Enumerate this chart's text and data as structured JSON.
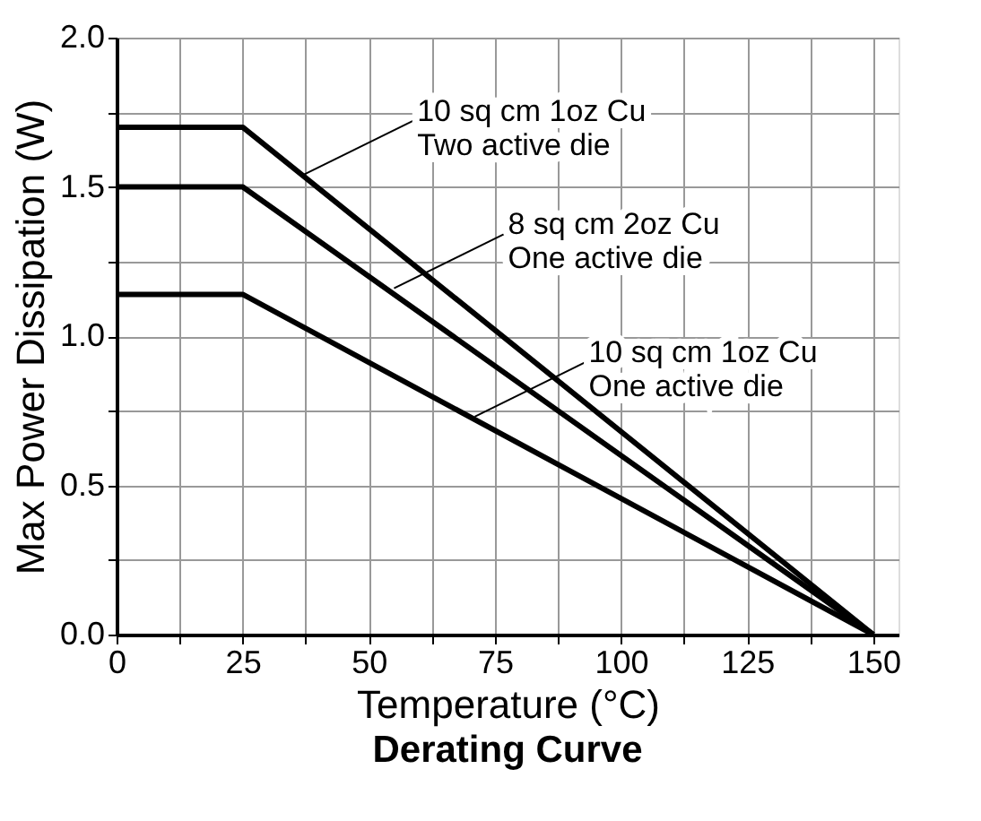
{
  "chart_data": {
    "type": "line",
    "title": "Derating Curve",
    "xlabel": "Temperature (°C)",
    "ylabel": "Max Power Dissipation (W)",
    "x": [
      0,
      25,
      150
    ],
    "series": [
      {
        "color": "#000000",
        "values": [
          1.7,
          1.7,
          0
        ]
      },
      {
        "color": "#000000",
        "values": [
          1.5,
          1.5,
          0
        ]
      },
      {
        "color": "#000000",
        "values": [
          1.14,
          1.14,
          0
        ]
      }
    ],
    "annotations": [
      {
        "text": "10 sq cm 1oz Cu\nTwo active die",
        "x": 37,
        "y": 1.54
      },
      {
        "text": "8 sq cm 2oz Cu\nOne active die",
        "x": 55,
        "y": 1.16
      },
      {
        "text": "10 sq cm 1oz Cu\nOne active die",
        "x": 71,
        "y": 0.73
      }
    ],
    "xlim": [
      0,
      155
    ],
    "xticks": [
      0,
      {
        "value": 12.5,
        "label": null
      },
      25,
      {
        "value": 37.5,
        "label": null
      },
      50,
      {
        "value": 62.5,
        "label": null
      },
      75,
      {
        "value": 87.5,
        "label": null
      },
      100,
      {
        "value": 112.5,
        "label": null
      },
      125,
      {
        "value": 137.5,
        "label": null
      },
      150
    ],
    "ylim": [
      0,
      2.0
    ],
    "yticks": [
      {
        "value": 0,
        "label": "0.0"
      },
      {
        "value": 0.25,
        "label": null
      },
      {
        "value": 0.5,
        "label": "0.5"
      },
      {
        "value": 0.75,
        "label": null
      },
      {
        "value": 1.0,
        "label": "1.0"
      },
      {
        "value": 1.25,
        "label": null
      },
      {
        "value": 1.5,
        "label": "1.5"
      },
      {
        "value": 1.75,
        "label": null
      },
      {
        "value": 2.0,
        "label": "2.0"
      }
    ],
    "grid": true,
    "marker": "none",
    "line_style": "solid",
    "legend": false
  }
}
